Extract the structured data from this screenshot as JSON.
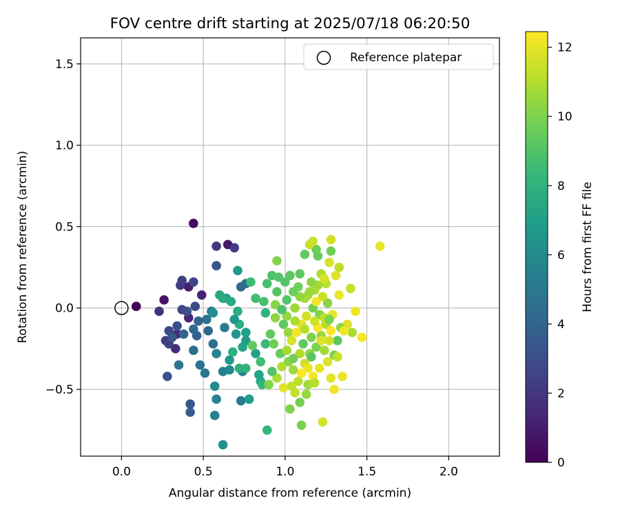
{
  "chart_data": {
    "type": "scatter",
    "title": "FOV centre drift starting at 2025/07/18 06:20:50",
    "xlabel": "Angular distance from reference (arcmin)",
    "ylabel": "Rotation from reference (arcmin)",
    "xlim": [
      -0.25,
      2.31
    ],
    "ylim": [
      -0.91,
      1.66
    ],
    "xticks": [
      0.0,
      0.5,
      1.0,
      1.5,
      2.0
    ],
    "xtick_labels": [
      "0.0",
      "0.5",
      "1.0",
      "1.5",
      "2.0"
    ],
    "yticks": [
      -0.5,
      0.0,
      0.5,
      1.0,
      1.5
    ],
    "ytick_labels": [
      "−0.5",
      "0.0",
      "0.5",
      "1.0",
      "1.5"
    ],
    "grid": true,
    "legend": {
      "placement": "top-right",
      "entries": [
        {
          "label": "Reference platepar",
          "marker": "open-circle",
          "x": 0.0,
          "y": 0.0
        }
      ]
    },
    "colorbar": {
      "label": "Hours from first FF file",
      "colormap": "viridis",
      "range": [
        0,
        12.45
      ],
      "ticks": [
        0,
        2,
        4,
        6,
        8,
        10,
        12
      ],
      "tick_labels": [
        "0",
        "2",
        "4",
        "6",
        "8",
        "10",
        "12"
      ]
    },
    "colormap_stops": [
      "#440154",
      "#482878",
      "#3e4989",
      "#31688e",
      "#26828e",
      "#1f9e89",
      "#35b779",
      "#6ece58",
      "#b5de2b",
      "#fde725"
    ],
    "points": [
      {
        "x": 0.09,
        "y": 0.01,
        "c": 0.1
      },
      {
        "x": 0.26,
        "y": 0.05,
        "c": 0.6
      },
      {
        "x": 0.44,
        "y": 0.52,
        "c": 0.4
      },
      {
        "x": 0.65,
        "y": 0.39,
        "c": 0.8
      },
      {
        "x": 0.41,
        "y": 0.13,
        "c": 1.0
      },
      {
        "x": 0.49,
        "y": 0.08,
        "c": 1.2
      },
      {
        "x": 0.41,
        "y": -0.06,
        "c": 1.3
      },
      {
        "x": 0.34,
        "y": -0.16,
        "c": 1.5
      },
      {
        "x": 0.33,
        "y": -0.25,
        "c": 1.6
      },
      {
        "x": 0.23,
        "y": -0.02,
        "c": 1.8
      },
      {
        "x": 0.58,
        "y": 0.38,
        "c": 2.1
      },
      {
        "x": 0.69,
        "y": 0.37,
        "c": 2.3
      },
      {
        "x": 0.36,
        "y": 0.14,
        "c": 2.0
      },
      {
        "x": 0.37,
        "y": 0.17,
        "c": 2.4
      },
      {
        "x": 0.44,
        "y": 0.16,
        "c": 2.6
      },
      {
        "x": 0.37,
        "y": -0.01,
        "c": 2.5
      },
      {
        "x": 0.27,
        "y": -0.2,
        "c": 2.2
      },
      {
        "x": 0.29,
        "y": -0.22,
        "c": 2.4
      },
      {
        "x": 0.29,
        "y": -0.14,
        "c": 2.7
      },
      {
        "x": 0.34,
        "y": -0.11,
        "c": 3.0
      },
      {
        "x": 0.45,
        "y": 0.01,
        "c": 2.9
      },
      {
        "x": 0.28,
        "y": -0.42,
        "c": 3.2
      },
      {
        "x": 0.42,
        "y": -0.59,
        "c": 3.4
      },
      {
        "x": 0.42,
        "y": -0.64,
        "c": 3.6
      },
      {
        "x": 0.58,
        "y": 0.26,
        "c": 3.3
      },
      {
        "x": 0.46,
        "y": -0.17,
        "c": 3.8
      },
      {
        "x": 0.38,
        "y": -0.16,
        "c": 4.0
      },
      {
        "x": 0.44,
        "y": -0.13,
        "c": 4.2
      },
      {
        "x": 0.53,
        "y": -0.14,
        "c": 4.1
      },
      {
        "x": 0.44,
        "y": -0.26,
        "c": 4.5
      },
      {
        "x": 0.56,
        "y": -0.22,
        "c": 4.6
      },
      {
        "x": 0.48,
        "y": -0.35,
        "c": 4.8
      },
      {
        "x": 0.51,
        "y": -0.4,
        "c": 5.0
      },
      {
        "x": 0.35,
        "y": -0.35,
        "c": 4.9
      },
      {
        "x": 0.55,
        "y": -0.02,
        "c": 5.2
      },
      {
        "x": 0.73,
        "y": 0.13,
        "c": 4.3
      },
      {
        "x": 0.76,
        "y": 0.15,
        "c": 4.4
      },
      {
        "x": 0.57,
        "y": -0.66,
        "c": 5.4
      },
      {
        "x": 0.58,
        "y": -0.56,
        "c": 5.6
      },
      {
        "x": 0.73,
        "y": -0.57,
        "c": 5.3
      },
      {
        "x": 0.58,
        "y": -0.28,
        "c": 5.7
      },
      {
        "x": 0.62,
        "y": -0.39,
        "c": 5.5
      },
      {
        "x": 0.66,
        "y": -0.38,
        "c": 5.9
      },
      {
        "x": 0.74,
        "y": -0.39,
        "c": 5.8
      },
      {
        "x": 0.57,
        "y": -0.48,
        "c": 6.0
      },
      {
        "x": 0.62,
        "y": -0.84,
        "c": 6.2
      },
      {
        "x": 0.56,
        "y": -0.03,
        "c": 6.1
      },
      {
        "x": 0.64,
        "y": 0.06,
        "c": 6.3
      },
      {
        "x": 0.7,
        "y": -0.16,
        "c": 6.4
      },
      {
        "x": 0.66,
        "y": -0.32,
        "c": 6.6
      },
      {
        "x": 0.71,
        "y": 0.23,
        "c": 6.7
      },
      {
        "x": 0.78,
        "y": -0.56,
        "c": 6.9
      },
      {
        "x": 0.76,
        "y": -0.2,
        "c": 6.8
      },
      {
        "x": 0.76,
        "y": -0.15,
        "c": 7.0
      },
      {
        "x": 0.82,
        "y": -0.28,
        "c": 7.1
      },
      {
        "x": 0.84,
        "y": -0.41,
        "c": 7.2
      },
      {
        "x": 0.85,
        "y": -0.45,
        "c": 7.3
      },
      {
        "x": 0.6,
        "y": 0.08,
        "c": 7.4
      },
      {
        "x": 0.62,
        "y": 0.06,
        "c": 7.5
      },
      {
        "x": 0.67,
        "y": 0.04,
        "c": 7.6
      },
      {
        "x": 0.71,
        "y": -0.02,
        "c": 7.7
      },
      {
        "x": 0.72,
        "y": -0.1,
        "c": 7.8
      },
      {
        "x": 0.68,
        "y": -0.27,
        "c": 7.9
      },
      {
        "x": 0.72,
        "y": -0.37,
        "c": 8.0
      },
      {
        "x": 0.76,
        "y": -0.37,
        "c": 8.1
      },
      {
        "x": 0.86,
        "y": -0.47,
        "c": 8.2
      },
      {
        "x": 0.89,
        "y": -0.75,
        "c": 8.3
      },
      {
        "x": 0.88,
        "y": -0.22,
        "c": 8.4
      },
      {
        "x": 0.79,
        "y": 0.16,
        "c": 8.5
      },
      {
        "x": 0.82,
        "y": 0.06,
        "c": 8.6
      },
      {
        "x": 0.87,
        "y": 0.04,
        "c": 8.7
      },
      {
        "x": 0.89,
        "y": 0.15,
        "c": 8.8
      },
      {
        "x": 0.92,
        "y": 0.2,
        "c": 8.9
      },
      {
        "x": 0.96,
        "y": 0.19,
        "c": 9.0
      },
      {
        "x": 1.0,
        "y": 0.16,
        "c": 9.1
      },
      {
        "x": 1.03,
        "y": 0.2,
        "c": 9.2
      },
      {
        "x": 1.09,
        "y": 0.21,
        "c": 9.3
      },
      {
        "x": 1.12,
        "y": 0.33,
        "c": 9.4
      },
      {
        "x": 1.2,
        "y": 0.32,
        "c": 9.5
      },
      {
        "x": 1.19,
        "y": 0.36,
        "c": 9.6
      },
      {
        "x": 1.28,
        "y": 0.35,
        "c": 9.7
      },
      {
        "x": 1.09,
        "y": -0.58,
        "c": 9.8
      },
      {
        "x": 1.1,
        "y": -0.72,
        "c": 9.9
      },
      {
        "x": 1.03,
        "y": -0.62,
        "c": 10.0
      },
      {
        "x": 0.95,
        "y": 0.29,
        "c": 10.1
      },
      {
        "x": 0.94,
        "y": 0.02,
        "c": 10.2
      },
      {
        "x": 0.94,
        "y": -0.06,
        "c": 10.3
      },
      {
        "x": 1.01,
        "y": -0.05,
        "c": 10.4
      },
      {
        "x": 1.02,
        "y": -0.15,
        "c": 10.5
      },
      {
        "x": 1.06,
        "y": 0.0,
        "c": 10.6
      },
      {
        "x": 1.12,
        "y": 0.06,
        "c": 10.7
      },
      {
        "x": 1.14,
        "y": 0.08,
        "c": 10.8
      },
      {
        "x": 1.18,
        "y": 0.11,
        "c": 10.9
      },
      {
        "x": 1.22,
        "y": 0.21,
        "c": 11.0
      },
      {
        "x": 1.25,
        "y": 0.15,
        "c": 11.1
      },
      {
        "x": 1.33,
        "y": 0.25,
        "c": 11.2
      },
      {
        "x": 1.4,
        "y": 0.12,
        "c": 11.3
      },
      {
        "x": 1.15,
        "y": 0.39,
        "c": 11.4
      },
      {
        "x": 1.17,
        "y": 0.41,
        "c": 11.5
      },
      {
        "x": 1.28,
        "y": 0.42,
        "c": 11.6
      },
      {
        "x": 1.58,
        "y": 0.38,
        "c": 12.0
      },
      {
        "x": 1.27,
        "y": 0.28,
        "c": 11.8
      },
      {
        "x": 1.33,
        "y": 0.08,
        "c": 12.1
      },
      {
        "x": 1.43,
        "y": -0.02,
        "c": 12.2
      },
      {
        "x": 1.47,
        "y": -0.18,
        "c": 12.3
      },
      {
        "x": 1.38,
        "y": -0.1,
        "c": 11.9
      },
      {
        "x": 1.41,
        "y": -0.15,
        "c": 10.8
      },
      {
        "x": 1.34,
        "y": -0.12,
        "c": 10.4
      },
      {
        "x": 1.32,
        "y": -0.2,
        "c": 9.2
      },
      {
        "x": 1.3,
        "y": -0.29,
        "c": 10.0
      },
      {
        "x": 1.32,
        "y": -0.3,
        "c": 11.4
      },
      {
        "x": 1.28,
        "y": -0.43,
        "c": 11.9
      },
      {
        "x": 1.3,
        "y": -0.5,
        "c": 12.2
      },
      {
        "x": 1.35,
        "y": -0.42,
        "c": 12.1
      },
      {
        "x": 1.23,
        "y": -0.7,
        "c": 11.7
      },
      {
        "x": 1.27,
        "y": -0.2,
        "c": 11.6
      },
      {
        "x": 1.26,
        "y": -0.33,
        "c": 11.8
      },
      {
        "x": 1.21,
        "y": -0.37,
        "c": 12.0
      },
      {
        "x": 1.17,
        "y": -0.42,
        "c": 12.3
      },
      {
        "x": 1.1,
        "y": -0.4,
        "c": 12.4
      },
      {
        "x": 1.08,
        "y": -0.45,
        "c": 11.2
      },
      {
        "x": 1.05,
        "y": -0.38,
        "c": 10.6
      },
      {
        "x": 1.02,
        "y": -0.33,
        "c": 10.2
      },
      {
        "x": 0.98,
        "y": -0.36,
        "c": 11.0
      },
      {
        "x": 0.95,
        "y": -0.43,
        "c": 10.9
      },
      {
        "x": 0.97,
        "y": -0.28,
        "c": 9.5
      },
      {
        "x": 0.91,
        "y": -0.16,
        "c": 9.4
      },
      {
        "x": 0.93,
        "y": -0.22,
        "c": 9.7
      },
      {
        "x": 0.99,
        "y": -0.49,
        "c": 12.0
      },
      {
        "x": 1.04,
        "y": -0.48,
        "c": 11.3
      },
      {
        "x": 1.14,
        "y": -0.47,
        "c": 10.7
      },
      {
        "x": 1.18,
        "y": -0.46,
        "c": 11.1
      },
      {
        "x": 1.12,
        "y": -0.34,
        "c": 11.5
      },
      {
        "x": 1.15,
        "y": -0.28,
        "c": 10.3
      },
      {
        "x": 1.19,
        "y": -0.24,
        "c": 9.9
      },
      {
        "x": 1.22,
        "y": -0.17,
        "c": 10.5
      },
      {
        "x": 1.25,
        "y": -0.1,
        "c": 11.0
      },
      {
        "x": 1.21,
        "y": -0.04,
        "c": 10.1
      },
      {
        "x": 1.17,
        "y": 0.0,
        "c": 9.8
      },
      {
        "x": 1.13,
        "y": -0.05,
        "c": 11.6
      },
      {
        "x": 1.1,
        "y": -0.1,
        "c": 11.9
      },
      {
        "x": 1.07,
        "y": -0.15,
        "c": 12.2
      },
      {
        "x": 1.04,
        "y": -0.2,
        "c": 11.7
      },
      {
        "x": 1.01,
        "y": -0.26,
        "c": 10.8
      },
      {
        "x": 1.11,
        "y": -0.22,
        "c": 9.3
      },
      {
        "x": 1.16,
        "y": -0.18,
        "c": 10.0
      },
      {
        "x": 1.2,
        "y": -0.12,
        "c": 12.4
      },
      {
        "x": 1.24,
        "y": -0.06,
        "c": 11.2
      },
      {
        "x": 1.26,
        "y": 0.03,
        "c": 10.2
      },
      {
        "x": 1.23,
        "y": 0.07,
        "c": 11.4
      },
      {
        "x": 1.19,
        "y": 0.04,
        "c": 12.3
      },
      {
        "x": 1.15,
        "y": 0.1,
        "c": 10.6
      },
      {
        "x": 1.09,
        "y": 0.07,
        "c": 10.4
      },
      {
        "x": 1.05,
        "y": 0.1,
        "c": 9.6
      },
      {
        "x": 1.01,
        "y": 0.05,
        "c": 9.0
      },
      {
        "x": 0.98,
        "y": -0.01,
        "c": 8.9
      },
      {
        "x": 0.99,
        "y": -0.1,
        "c": 9.4
      },
      {
        "x": 1.06,
        "y": -0.08,
        "c": 10.9
      },
      {
        "x": 1.12,
        "y": -0.13,
        "c": 11.1
      },
      {
        "x": 1.18,
        "y": -0.08,
        "c": 11.5
      },
      {
        "x": 1.29,
        "y": -0.04,
        "c": 12.0
      },
      {
        "x": 1.36,
        "y": -0.14,
        "c": 12.2
      },
      {
        "x": 1.31,
        "y": 0.2,
        "c": 11.9
      },
      {
        "x": 1.24,
        "y": 0.18,
        "c": 11.7
      },
      {
        "x": 1.2,
        "y": 0.14,
        "c": 10.7
      },
      {
        "x": 1.16,
        "y": 0.16,
        "c": 10.3
      },
      {
        "x": 1.08,
        "y": 0.13,
        "c": 9.7
      },
      {
        "x": 0.95,
        "y": 0.1,
        "c": 9.1
      },
      {
        "x": 0.88,
        "y": -0.03,
        "c": 8.0
      },
      {
        "x": 0.85,
        "y": -0.33,
        "c": 8.6
      },
      {
        "x": 0.8,
        "y": -0.23,
        "c": 9.3
      },
      {
        "x": 0.92,
        "y": -0.39,
        "c": 9.0
      },
      {
        "x": 0.9,
        "y": -0.47,
        "c": 10.1
      },
      {
        "x": 1.06,
        "y": -0.52,
        "c": 11.3
      },
      {
        "x": 1.13,
        "y": -0.53,
        "c": 10.5
      },
      {
        "x": 1.16,
        "y": -0.3,
        "c": 9.2
      },
      {
        "x": 1.24,
        "y": -0.26,
        "c": 10.8
      },
      {
        "x": 1.28,
        "y": -0.14,
        "c": 12.4
      },
      {
        "x": 1.27,
        "y": -0.07,
        "c": 9.9
      },
      {
        "x": 1.22,
        "y": -0.2,
        "c": 11.8
      },
      {
        "x": 1.14,
        "y": -0.37,
        "c": 12.1
      },
      {
        "x": 1.09,
        "y": -0.28,
        "c": 11.0
      },
      {
        "x": 1.05,
        "y": -0.31,
        "c": 9.8
      },
      {
        "x": 0.74,
        "y": -0.24,
        "c": 7.3
      },
      {
        "x": 0.69,
        "y": -0.07,
        "c": 6.5
      },
      {
        "x": 0.63,
        "y": -0.12,
        "c": 5.1
      },
      {
        "x": 0.52,
        "y": -0.07,
        "c": 4.7
      },
      {
        "x": 0.47,
        "y": -0.08,
        "c": 3.9
      },
      {
        "x": 0.4,
        "y": -0.02,
        "c": 3.1
      },
      {
        "x": 0.31,
        "y": -0.18,
        "c": 3.5
      }
    ]
  }
}
